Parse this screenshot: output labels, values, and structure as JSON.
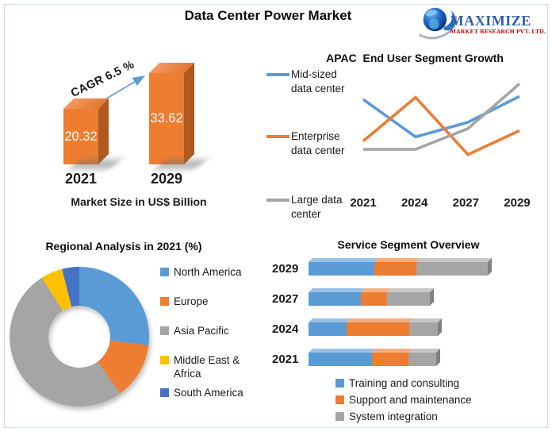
{
  "page": {
    "title": "Data Center Power Market"
  },
  "logo": {
    "name": "MAXIMIZE",
    "subtitle": "MARKET RESEARCH PVT. LTD.",
    "name_color": "#2f5ea8",
    "subtitle_color": "#c00000"
  },
  "frame_color": "#cfe0ee",
  "chart_data": [
    {
      "id": "market-size",
      "type": "bar",
      "title": "Market Size in US$ Billion",
      "categories": [
        "2021",
        "2029"
      ],
      "values": [
        20.32,
        33.62
      ],
      "annotation": "CAGR 6.5 %",
      "annotation_arrow_color": "#5B9BD5",
      "bar_color": "#ED7D31",
      "bar_side_color": "#b0591c",
      "bar_top_color": "#f49a62",
      "value_label_color": "#ffffff",
      "style": "3d"
    },
    {
      "id": "apac-end-user",
      "type": "line",
      "title": "APAC  End User Segment Growth",
      "x": [
        "2021",
        "2024",
        "2027",
        "2029"
      ],
      "series": [
        {
          "name": "Mid-sized data center",
          "color": "#5B9BD5",
          "values": [
            80,
            44,
            58,
            83
          ]
        },
        {
          "name": "Enterprise data center",
          "color": "#ED7D31",
          "values": [
            40,
            82,
            27,
            50
          ]
        },
        {
          "name": "Large data center",
          "color": "#A5A5A5",
          "values": [
            32,
            32,
            52,
            95
          ]
        }
      ],
      "ylim": [
        0,
        100
      ],
      "grid": false,
      "legend_position": "left"
    },
    {
      "id": "regional-analysis",
      "type": "pie",
      "title": "Regional Analysis in 2021 (%)",
      "donut": true,
      "labels": [
        "North America",
        "Europe",
        "Asia Pacific",
        "Middle East & Africa",
        "South America"
      ],
      "values": [
        27,
        13,
        51,
        5,
        4
      ],
      "colors": [
        "#5B9BD5",
        "#ED7D31",
        "#A5A5A5",
        "#FFC000",
        "#4472C4"
      ],
      "legend_position": "right"
    },
    {
      "id": "service-segment",
      "type": "stacked-bar",
      "title": "Service Segment Overview",
      "orientation": "horizontal",
      "categories": [
        "2029",
        "2027",
        "2024",
        "2021"
      ],
      "series": [
        {
          "name": "Training and consulting",
          "color": "#5B9BD5",
          "values": [
            83,
            66,
            48,
            80
          ]
        },
        {
          "name": "Support and maintenance",
          "color": "#ED7D31",
          "values": [
            53,
            33,
            79,
            46
          ]
        },
        {
          "name": "System integration",
          "color": "#A5A5A5",
          "values": [
            90,
            54,
            36,
            35
          ]
        }
      ],
      "legend_position": "bottom",
      "style": "3d"
    }
  ]
}
